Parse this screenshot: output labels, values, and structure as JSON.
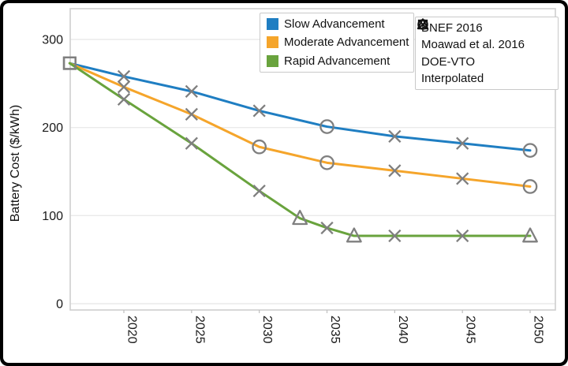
{
  "chart_data": {
    "type": "line",
    "title": "",
    "xlabel": "",
    "ylabel": "Battery Cost ($/kWh)",
    "ylim": [
      0,
      335
    ],
    "xlim": [
      2016,
      2052
    ],
    "grid": "horizontal",
    "y_ticks": [
      {
        "value": 0,
        "label": "0"
      },
      {
        "value": 100,
        "label": "100"
      },
      {
        "value": 200,
        "label": "200"
      },
      {
        "value": 300,
        "label": "300"
      }
    ],
    "x_ticks": [
      {
        "value": 2020,
        "label": "2020"
      },
      {
        "value": 2025,
        "label": "2025"
      },
      {
        "value": 2030,
        "label": "2030"
      },
      {
        "value": 2035,
        "label": "2035"
      },
      {
        "value": 2040,
        "label": "2040"
      },
      {
        "value": 2045,
        "label": "2045"
      },
      {
        "value": 2050,
        "label": "2050"
      }
    ],
    "marker_color": "#7f7f7f",
    "legend_marker_color": "#111111",
    "series": [
      {
        "name": "Slow Advancement",
        "color": "#1f7ec2",
        "points": [
          {
            "year": 2016,
            "value": 273,
            "marker": "square"
          },
          {
            "year": 2020,
            "value": 258,
            "marker": "x"
          },
          {
            "year": 2025,
            "value": 241,
            "marker": "x"
          },
          {
            "year": 2030,
            "value": 219,
            "marker": "x"
          },
          {
            "year": 2035,
            "value": 201,
            "marker": "circle"
          },
          {
            "year": 2040,
            "value": 190,
            "marker": "x"
          },
          {
            "year": 2045,
            "value": 182,
            "marker": "x"
          },
          {
            "year": 2050,
            "value": 174,
            "marker": "circle"
          }
        ]
      },
      {
        "name": "Moderate Advancement",
        "color": "#f5a52b",
        "points": [
          {
            "year": 2016,
            "value": 273,
            "marker": "square"
          },
          {
            "year": 2020,
            "value": 246,
            "marker": "x"
          },
          {
            "year": 2025,
            "value": 215,
            "marker": "x"
          },
          {
            "year": 2030,
            "value": 178,
            "marker": "circle"
          },
          {
            "year": 2035,
            "value": 160,
            "marker": "circle"
          },
          {
            "year": 2040,
            "value": 151,
            "marker": "x"
          },
          {
            "year": 2045,
            "value": 142,
            "marker": "x"
          },
          {
            "year": 2050,
            "value": 133,
            "marker": "circle"
          }
        ]
      },
      {
        "name": "Rapid Advancement",
        "color": "#69a33d",
        "points": [
          {
            "year": 2016,
            "value": 273,
            "marker": "square"
          },
          {
            "year": 2020,
            "value": 232,
            "marker": "x"
          },
          {
            "year": 2025,
            "value": 182,
            "marker": "x"
          },
          {
            "year": 2030,
            "value": 128,
            "marker": "x"
          },
          {
            "year": 2033,
            "value": 97,
            "marker": "triangle"
          },
          {
            "year": 2035,
            "value": 86,
            "marker": "x"
          },
          {
            "year": 2037,
            "value": 77,
            "marker": "triangle"
          },
          {
            "year": 2040,
            "value": 77,
            "marker": "x"
          },
          {
            "year": 2045,
            "value": 77,
            "marker": "x"
          },
          {
            "year": 2050,
            "value": 77,
            "marker": "triangle"
          }
        ]
      }
    ],
    "marker_legend": [
      {
        "marker": "square",
        "label": "BNEF 2016"
      },
      {
        "marker": "circle",
        "label": "Moawad et al. 2016"
      },
      {
        "marker": "triangle",
        "label": "DOE-VTO"
      },
      {
        "marker": "x",
        "label": "Interpolated"
      }
    ]
  }
}
